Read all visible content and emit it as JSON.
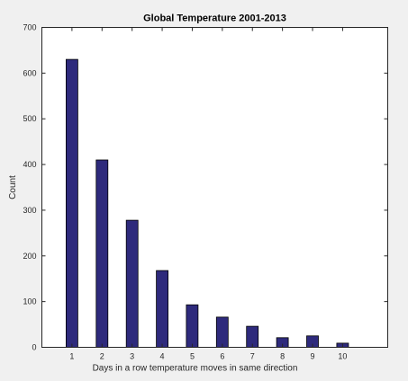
{
  "chart_data": {
    "type": "bar",
    "title": "Global Temperature 2001-2013",
    "xlabel": "Days in a row temperature moves in same direction",
    "ylabel": "Count",
    "categories": [
      "1",
      "2",
      "3",
      "4",
      "5",
      "6",
      "7",
      "8",
      "9",
      "10"
    ],
    "values": [
      630,
      410,
      278,
      168,
      93,
      66,
      46,
      21,
      25,
      9
    ],
    "xlim": [
      0,
      11.5
    ],
    "ylim": [
      0,
      700
    ],
    "yticks": [
      "0",
      "100",
      "200",
      "300",
      "400",
      "500",
      "600",
      "700"
    ],
    "grid": false,
    "legend": "none",
    "bar_color": "#2e2a7c",
    "bar_edge_color": "#000000",
    "background_color": "#f0f0f0",
    "plot_color": "#ffffff"
  }
}
